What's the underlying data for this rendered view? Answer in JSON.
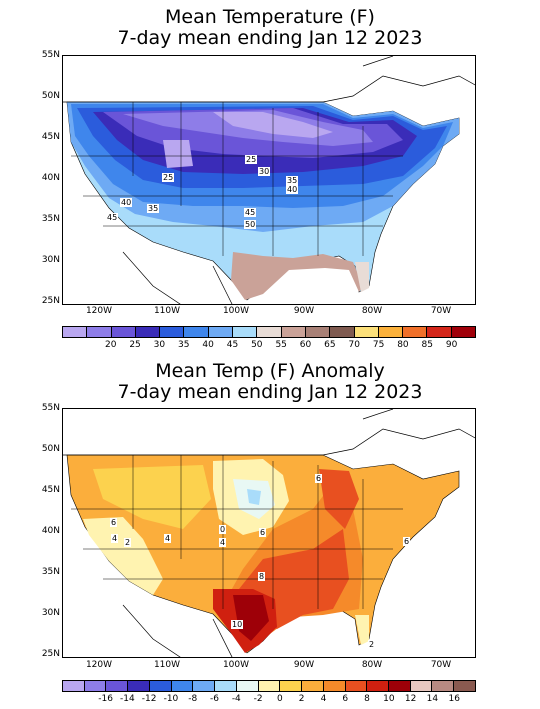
{
  "panels": [
    {
      "title_line1": "Mean Temperature (F)",
      "title_line2": "7-day mean ending Jan 12 2023",
      "lat_labels": [
        "55N",
        "50N",
        "45N",
        "40N",
        "35N",
        "30N",
        "25N"
      ],
      "lon_labels": [
        "120W",
        "110W",
        "100W",
        "90W",
        "80W",
        "70W"
      ],
      "contour_labels": [
        "25",
        "30",
        "35",
        "40",
        "25",
        "40",
        "35",
        "45",
        "45",
        "50"
      ],
      "colorbar_colors": [
        "#b9a7f0",
        "#8e7de8",
        "#6a55d8",
        "#3a2cb8",
        "#2b5cdc",
        "#3f86ec",
        "#6eaaf4",
        "#a9dcfa",
        "#e8dcd6",
        "#caa298",
        "#a88076",
        "#7f5a50",
        "#fce07a",
        "#fbb13b",
        "#f0702a",
        "#d4261a",
        "#a0000a"
      ],
      "colorbar_labels": [
        "20",
        "25",
        "30",
        "35",
        "40",
        "45",
        "50",
        "55",
        "60",
        "65",
        "70",
        "75",
        "80",
        "85",
        "90"
      ]
    },
    {
      "title_line1": "Mean Temp (F) Anomaly",
      "title_line2": "7-day mean ending Jan 12 2023",
      "lat_labels": [
        "55N",
        "50N",
        "45N",
        "40N",
        "35N",
        "30N",
        "25N"
      ],
      "lon_labels": [
        "120W",
        "110W",
        "100W",
        "90W",
        "80W",
        "70W"
      ],
      "contour_labels": [
        "6",
        "4",
        "2",
        "4",
        "0",
        "4",
        "6",
        "6",
        "8",
        "10",
        "6",
        "2"
      ],
      "colorbar_colors": [
        "#b9a7f0",
        "#8e7de8",
        "#6a55d8",
        "#3a2cb8",
        "#2b5cdc",
        "#3f86ec",
        "#6eaaf4",
        "#a9dcfa",
        "#e8f8f4",
        "#fff3b0",
        "#fcd24e",
        "#fbae3c",
        "#f58a2a",
        "#e85020",
        "#d02010",
        "#9e0008",
        "#e8c8c0",
        "#b88a82",
        "#8a5a50"
      ],
      "colorbar_labels": [
        "-16",
        "-14",
        "-12",
        "-10",
        "-8",
        "-6",
        "-4",
        "-2",
        "0",
        "2",
        "4",
        "6",
        "8",
        "10",
        "12",
        "14",
        "16"
      ]
    }
  ]
}
